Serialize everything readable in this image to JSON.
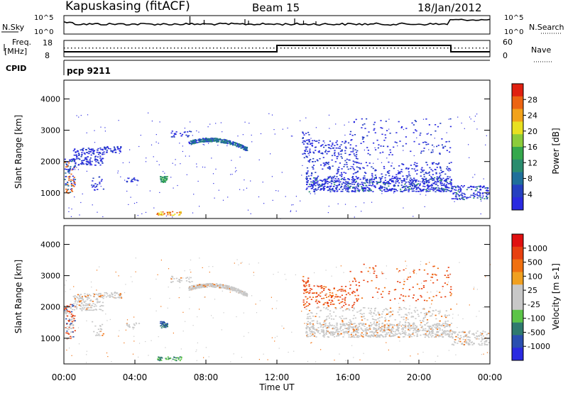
{
  "header": {
    "station": "Kapuskasing (fitACF)",
    "beam": "Beam 15",
    "date": "18/Jan/2012"
  },
  "strips": {
    "nsky": {
      "label": "N.Sky",
      "ticks": [
        "10^5",
        "10^0"
      ]
    },
    "nsearch": {
      "label": "N.Search",
      "ticks": [
        "10^5",
        "10^0"
      ]
    },
    "freq": {
      "label_line1": "Freq.",
      "label_line2": "[MHz]",
      "ticks": [
        "18",
        "8"
      ]
    },
    "nave": {
      "label": "Nave",
      "ticks": [
        "60",
        "0"
      ]
    },
    "cpid": {
      "label": "CPID",
      "value": "pcp 9211"
    }
  },
  "chart_data": [
    {
      "type": "heatmap",
      "name": "power",
      "ylabel": "Slant Range [km]",
      "ylim": [
        180,
        4600
      ],
      "yticks": [
        "1000",
        "2000",
        "3000",
        "4000"
      ],
      "colorbar_label": "Power [dB]",
      "colorbar_ticks": [
        "28",
        "24",
        "20",
        "16",
        "12",
        "8",
        "4"
      ],
      "colors": [
        "#2a2ae0",
        "#2540c0",
        "#1f6f9a",
        "#2a8c6e",
        "#35a84c",
        "#8ccc3a",
        "#e8e020",
        "#f2a21a",
        "#ec6412",
        "#e02010"
      ]
    },
    {
      "type": "heatmap",
      "name": "velocity",
      "xlabel": "Time UT",
      "xticks": [
        "00:00",
        "04:00",
        "08:00",
        "12:00",
        "16:00",
        "20:00",
        "00:00"
      ],
      "xlim": [
        0,
        24
      ],
      "ylabel": "Slant Range [km]",
      "ylim": [
        180,
        4600
      ],
      "yticks": [
        "1000",
        "2000",
        "3000",
        "4000"
      ],
      "colorbar_label": "Velocity [m s-1]",
      "colorbar_ticks": [
        "1000",
        "500",
        "100",
        "25",
        "-25",
        "-100",
        "-500",
        "-1000"
      ],
      "colors": [
        "#2a2ae0",
        "#2a4fb0",
        "#2f7a6e",
        "#5cc448",
        "#c8c8c8",
        "#c8c8c8",
        "#f0a020",
        "#f07010",
        "#e84010",
        "#e01010"
      ]
    }
  ]
}
